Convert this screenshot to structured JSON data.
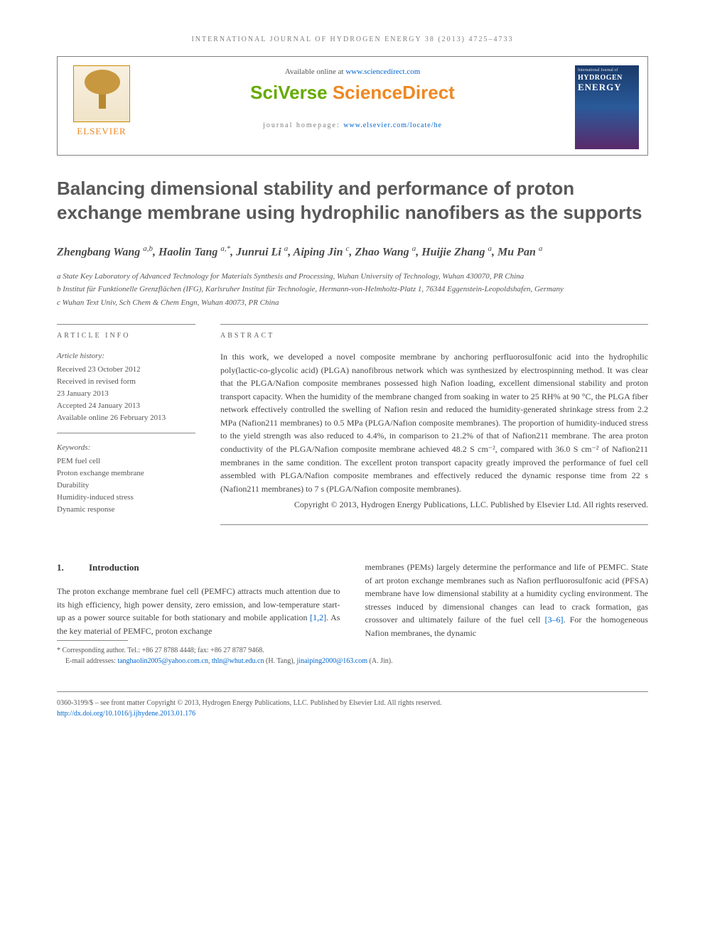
{
  "journal_header": "INTERNATIONAL JOURNAL OF HYDROGEN ENERGY 38 (2013) 4725–4733",
  "topbox": {
    "available_prefix": "Available online at ",
    "available_link": "www.sciencedirect.com",
    "brand_sv": "SciVerse ",
    "brand_sd": "ScienceDirect",
    "homepage_prefix": "journal homepage: ",
    "homepage_link": "www.elsevier.com/locate/he",
    "elsevier": "ELSEVIER",
    "cover": {
      "line1": "International Journal of",
      "hydrogen": "HYDROGEN",
      "energy": "ENERGY"
    }
  },
  "title": "Balancing dimensional stability and performance of proton exchange membrane using hydrophilic nanofibers as the supports",
  "authors_html": "Zhengbang Wang <sup>a,b</sup>, Haolin Tang <sup>a,*</sup>, Junrui Li <sup>a</sup>, Aiping Jin <sup>c</sup>, Zhao Wang <sup>a</sup>, Huijie Zhang <sup>a</sup>, Mu Pan <sup>a</sup>",
  "affiliations": {
    "a": "a State Key Laboratory of Advanced Technology for Materials Synthesis and Processing, Wuhan University of Technology, Wuhan 430070, PR China",
    "b": "b Institut für Funktionelle Grenzflächen (IFG), Karlsruher Institut für Technologie, Hermann-von-Helmholtz-Platz 1, 76344 Eggenstein-Leopoldshafen, Germany",
    "c": "c Wuhan Text Univ, Sch Chem & Chem Engn, Wuhan 40073, PR China"
  },
  "article_info": {
    "label": "ARTICLE INFO",
    "history_label": "Article history:",
    "history": [
      "Received 23 October 2012",
      "Received in revised form",
      "23 January 2013",
      "Accepted 24 January 2013",
      "Available online 26 February 2013"
    ],
    "keywords_label": "Keywords:",
    "keywords": [
      "PEM fuel cell",
      "Proton exchange membrane",
      "Durability",
      "Humidity-induced stress",
      "Dynamic response"
    ]
  },
  "abstract": {
    "label": "ABSTRACT",
    "text": "In this work, we developed a novel composite membrane by anchoring perfluorosulfonic acid into the hydrophilic poly(lactic-co-glycolic acid) (PLGA) nanofibrous network which was synthesized by electrospinning method. It was clear that the PLGA/Nafion composite membranes possessed high Nafion loading, excellent dimensional stability and proton transport capacity. When the humidity of the membrane changed from soaking in water to 25 RH% at 90 °C, the PLGA fiber network effectively controlled the swelling of Nafion resin and reduced the humidity-generated shrinkage stress from 2.2 MPa (Nafion211 membranes) to 0.5 MPa (PLGA/Nafion composite membranes). The proportion of humidity-induced stress to the yield strength was also reduced to 4.4%, in comparison to 21.2% of that of Nafion211 membrane. The area proton conductivity of the PLGA/Nafion composite membrane achieved 48.2 S cm⁻², compared with 36.0 S cm⁻² of Nafion211 membranes in the same condition. The excellent proton transport capacity greatly improved the performance of fuel cell assembled with PLGA/Nafion composite membranes and effectively reduced the dynamic response time from 22 s (Nafion211 membranes) to 7 s (PLGA/Nafion composite membranes).",
    "copyright": "Copyright © 2013, Hydrogen Energy Publications, LLC. Published by Elsevier Ltd. All rights reserved."
  },
  "body": {
    "section_num": "1.",
    "section_title": "Introduction",
    "col1": "The proton exchange membrane fuel cell (PEMFC) attracts much attention due to its high efficiency, high power density, zero emission, and low-temperature start-up as a power source suitable for both stationary and mobile application ",
    "col1_ref": "[1,2]",
    "col1_tail": ". As the key material of PEMFC, proton exchange",
    "col2_a": "membranes (PEMs) largely determine the performance and life of PEMFC. State of art proton exchange membranes such as Nafion perfluorosulfonic acid (PFSA) membrane have low dimensional stability at a humidity cycling environment. The stresses induced by dimensional changes can lead to crack formation, gas crossover and ultimately failure of the fuel cell ",
    "col2_ref": "[3–6]",
    "col2_b": ". For the homogeneous Nafion membranes, the dynamic"
  },
  "footer": {
    "corresponding": "* Corresponding author. Tel.: +86 27 8788 4448; fax: +86 27 8787 9468.",
    "emails_label": "E-mail addresses: ",
    "email1": "tanghaolin2005@yahoo.com.cn",
    "email_sep1": ", ",
    "email2": "thln@whut.edu.cn",
    "email_after1": " (H. Tang), ",
    "email3": "jinaiping2000@163.com",
    "email_after2": " (A. Jin).",
    "issn": "0360-3199/$ – see front matter Copyright © 2013, Hydrogen Energy Publications, LLC. Published by Elsevier Ltd. All rights reserved.",
    "doi_label": "",
    "doi": "http://dx.doi.org/10.1016/j.ijhydene.2013.01.176"
  },
  "colors": {
    "orange": "#ee8822",
    "green": "#66aa00",
    "link": "#0066cc",
    "text": "#3a3a3a",
    "gray": "#808080"
  }
}
